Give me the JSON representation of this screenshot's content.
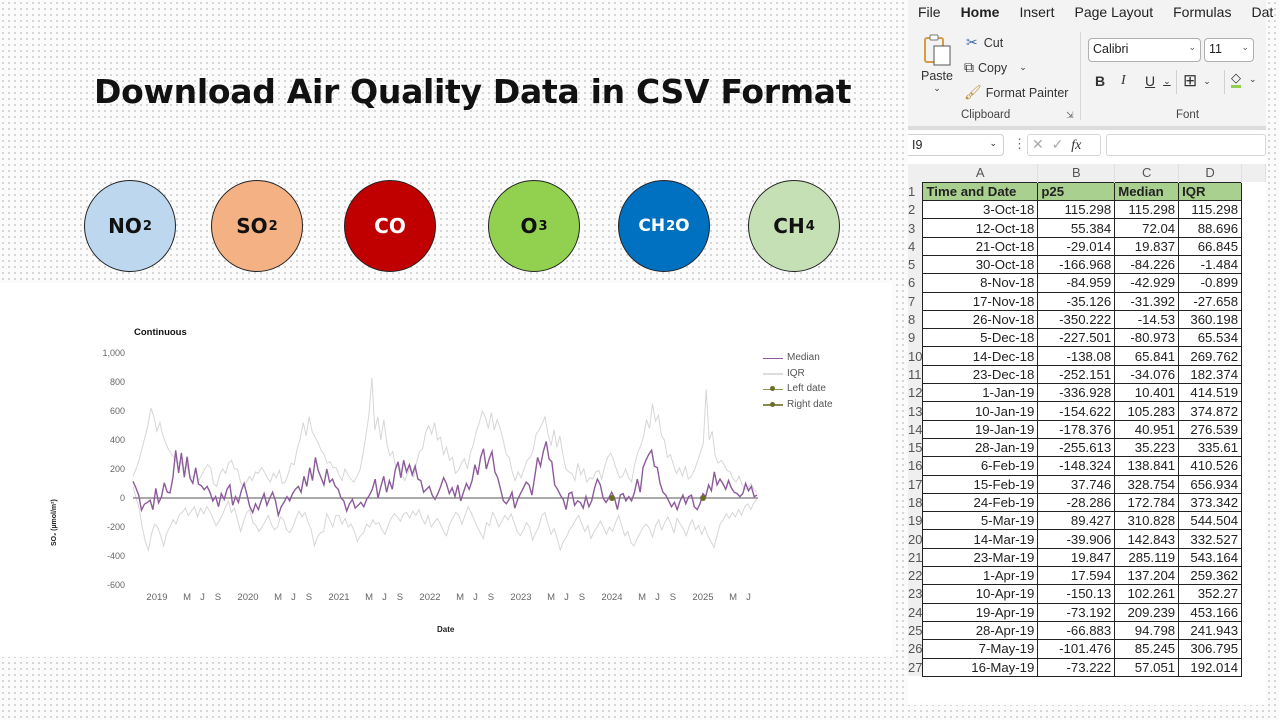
{
  "slide": {
    "title": "Download Air Quality Data in CSV Format",
    "pollutants": [
      {
        "main": "NO",
        "sub": "2",
        "fill": "#bdd7ee",
        "text": "#111111"
      },
      {
        "main": "SO",
        "sub": "2",
        "fill": "#f4b183",
        "text": "#111111"
      },
      {
        "main": "CO",
        "sub": "",
        "fill": "#c00000",
        "text": "#ffffff"
      },
      {
        "main": "O",
        "sub": "3",
        "fill": "#92d050",
        "text": "#111111"
      },
      {
        "main": "CH",
        "sub": "2",
        "tail": "O",
        "fill": "#0070c0",
        "text": "#ffffff"
      },
      {
        "main": "CH",
        "sub": "4",
        "tail": "",
        "fill": "#c5e0b4",
        "text": "#111111"
      }
    ]
  },
  "chart_data": {
    "type": "line",
    "title": "Continuous",
    "xlabel": "Date",
    "ylabel": "SO₂ (µmol/m²)",
    "ylim": [
      -600,
      1000
    ],
    "y_ticks": [
      "1,000",
      "800",
      "600",
      "400",
      "200",
      "0",
      "-200",
      "-400",
      "-600"
    ],
    "x_ticks": [
      "2019",
      "M",
      "J",
      "S",
      "2020",
      "M",
      "J",
      "S",
      "2021",
      "M",
      "J",
      "S",
      "2022",
      "M",
      "J",
      "S",
      "2023",
      "M",
      "J",
      "S",
      "2024",
      "M",
      "J",
      "S",
      "2025",
      "M",
      "J"
    ],
    "legend": [
      "Median",
      "IQR",
      "Left date",
      "Right date"
    ],
    "legend_position": "right",
    "grid": false,
    "colors": {
      "median": "#8c5a9a",
      "iqr": "#d4d4d4",
      "zero_line": "#555555",
      "markers": "#6b6b2a"
    },
    "x_start_year": 2018.78,
    "step_years": 0.0247,
    "series": [
      {
        "name": "Median",
        "values": [
          115,
          72,
          20,
          -84,
          -43,
          -31,
          -15,
          -81,
          66,
          -34,
          10,
          105,
          41,
          35,
          139,
          329,
          173,
          311,
          143,
          285,
          137,
          102,
          209,
          95,
          85,
          57,
          80,
          40,
          -20,
          10,
          -60,
          30,
          -10,
          60,
          90,
          -50,
          10,
          -30,
          50,
          100,
          20,
          -60,
          -100,
          -40,
          -80,
          -20,
          30,
          -50,
          0,
          40,
          -20,
          -120,
          -60,
          -30,
          10,
          -20,
          30,
          60,
          80,
          40,
          150,
          80,
          210,
          120,
          280,
          190,
          140,
          90,
          200,
          110,
          130,
          80,
          60,
          0,
          -20,
          -90,
          -40,
          -10,
          -70,
          -50,
          -30,
          -60,
          -10,
          20,
          60,
          130,
          0,
          80,
          150,
          40,
          120,
          60,
          190,
          250,
          140,
          260,
          180,
          230,
          160,
          220,
          130,
          120,
          40,
          60,
          80,
          20,
          -10,
          30,
          80,
          140,
          100,
          30,
          70,
          10,
          90,
          -20,
          40,
          100,
          60,
          120,
          230,
          160,
          280,
          340,
          200,
          270,
          320,
          180,
          140,
          60,
          -20,
          -40,
          -10,
          40,
          -70,
          -10,
          30,
          70,
          110,
          90,
          20,
          150,
          280,
          220,
          320,
          390,
          270,
          250,
          90,
          60,
          20,
          -10,
          -80,
          30,
          40,
          -50,
          -20,
          -30,
          -70,
          10,
          -60,
          -20,
          70,
          130,
          90,
          0,
          -30,
          0,
          40,
          0,
          -80,
          20,
          30,
          -20,
          10,
          -20,
          40,
          130,
          40,
          210,
          260,
          300,
          330,
          220,
          210,
          100,
          40,
          20,
          -20,
          -60,
          -30,
          -80,
          -20,
          20,
          -40,
          10,
          20,
          -60,
          -80,
          -40,
          30,
          10,
          90,
          50,
          180,
          90,
          130,
          100,
          60,
          120,
          70,
          40,
          30,
          10,
          30,
          100,
          50,
          80,
          10,
          20
        ]
      },
      {
        "name": "IQR upper",
        "values": [
          150,
          200,
          260,
          340,
          420,
          500,
          620,
          560,
          460,
          520,
          430,
          380,
          330,
          300,
          270,
          240,
          250,
          200,
          230,
          150,
          140,
          180,
          120,
          160,
          200,
          230,
          210,
          100,
          80,
          160,
          200,
          170,
          240,
          260,
          200,
          200,
          110,
          80,
          110,
          150,
          120,
          180,
          170,
          210,
          180,
          140,
          110,
          170,
          140,
          190,
          100,
          110,
          170,
          240,
          230,
          340,
          410,
          520,
          430,
          560,
          460,
          420,
          380,
          330,
          300,
          240,
          250,
          210,
          210,
          160,
          120,
          200,
          160,
          130,
          110,
          150,
          190,
          300,
          430,
          570,
          830,
          470,
          560,
          400,
          540,
          380,
          290,
          320,
          210,
          230,
          170,
          120,
          170,
          220,
          140,
          250,
          320,
          340,
          450,
          500,
          440,
          520,
          400,
          420,
          300,
          350,
          260,
          280,
          170,
          190,
          240,
          270,
          200,
          310,
          370,
          460,
          520,
          600,
          560,
          480,
          590,
          470,
          540,
          480,
          400,
          300,
          280,
          180,
          120,
          180,
          140,
          200,
          260,
          280,
          330,
          440,
          470,
          510,
          560,
          440,
          360,
          470,
          350,
          430,
          300,
          200,
          180,
          170,
          120,
          240,
          160,
          200,
          110,
          140,
          130,
          180,
          190,
          130,
          220,
          280,
          310,
          260,
          190,
          140,
          150,
          200,
          140,
          110,
          230,
          310,
          360,
          420,
          540,
          480,
          650,
          530,
          570,
          430,
          400,
          280,
          300,
          230,
          170,
          210,
          150,
          220,
          130,
          150,
          190,
          250,
          310,
          380,
          750,
          400,
          460,
          290,
          240,
          260,
          230,
          190,
          180,
          130,
          110,
          150,
          90,
          60,
          70,
          100,
          60,
          40
        ]
      },
      {
        "name": "IQR lower",
        "values": [
          80,
          0,
          -70,
          -200,
          -300,
          -360,
          -250,
          -180,
          -200,
          -260,
          -330,
          -240,
          -200,
          -150,
          -180,
          -120,
          -100,
          -70,
          -120,
          -90,
          -60,
          -130,
          -70,
          -110,
          -60,
          -90,
          -140,
          -190,
          -160,
          -120,
          -70,
          -20,
          -100,
          -70,
          -150,
          -230,
          -160,
          -100,
          -80,
          -170,
          -190,
          -230,
          -200,
          -160,
          -120,
          -180,
          -220,
          -200,
          -130,
          -150,
          -220,
          -240,
          -200,
          -140,
          -90,
          -130,
          -100,
          -170,
          -220,
          -330,
          -270,
          -240,
          -230,
          -110,
          -150,
          -200,
          -120,
          -120,
          -180,
          -140,
          -200,
          -180,
          -230,
          -300,
          -260,
          -240,
          -180,
          -200,
          -150,
          -180,
          -170,
          -220,
          -250,
          -190,
          -140,
          -110,
          -130,
          -160,
          -110,
          -100,
          -140,
          -90,
          -120,
          -80,
          -140,
          -180,
          -120,
          -200,
          -170,
          -140,
          -180,
          -230,
          -260,
          -180,
          -140,
          -100,
          -120,
          -180,
          -120,
          -60,
          -100,
          -150,
          -200,
          -240,
          -280,
          -170,
          -190,
          -100,
          -140,
          -200,
          -160,
          -120,
          -150,
          -110,
          -170,
          -230,
          -260,
          -220,
          -170,
          -200,
          -290,
          -240,
          -200,
          -120,
          -100,
          -180,
          -250,
          -210,
          -280,
          -360,
          -300,
          -270,
          -220,
          -190,
          -150,
          -120,
          -180,
          -230,
          -190,
          -280,
          -230,
          -200,
          -160,
          -200,
          -250,
          -200,
          -230,
          -170,
          -120,
          -190,
          -260,
          -230,
          -310,
          -330,
          -280,
          -240,
          -200,
          -180,
          -210,
          -270,
          -190,
          -150,
          -220,
          -170,
          -130,
          -180,
          -240,
          -140,
          -180,
          -210,
          -260,
          -190,
          -150,
          -220,
          -190,
          -250,
          -200,
          -260,
          -300,
          -340,
          -260,
          -180,
          -150,
          -110,
          -140,
          -100,
          -130,
          -80,
          -120,
          -60,
          -40,
          -80,
          -30,
          -10
        ]
      }
    ],
    "markers": [
      {
        "label": "Left date",
        "x_year": 2024.0,
        "y": 0
      },
      {
        "label": "Right date",
        "x_year": 2025.0,
        "y": 0
      }
    ]
  },
  "excel": {
    "menu_tabs": [
      "File",
      "Home",
      "Insert",
      "Page Layout",
      "Formulas",
      "Dat"
    ],
    "active_tab": "Home",
    "clipboard": {
      "paste": "Paste",
      "cut": "Cut",
      "copy": "Copy",
      "format_painter": "Format Painter",
      "group_label": "Clipboard"
    },
    "font": {
      "family": "Calibri",
      "size": "11",
      "group_label": "Font",
      "bold": "B",
      "italic": "I",
      "underline": "U"
    },
    "name_box": "I9",
    "formula_value": "",
    "columns": [
      "A",
      "B",
      "C",
      "D"
    ],
    "headers": [
      "Time and Date",
      "p25",
      "Median",
      "IQR"
    ],
    "rows": [
      [
        "3-Oct-18",
        "115.298",
        "115.298",
        "115.298"
      ],
      [
        "12-Oct-18",
        "55.384",
        "72.04",
        "88.696"
      ],
      [
        "21-Oct-18",
        "-29.014",
        "19.837",
        "66.845"
      ],
      [
        "30-Oct-18",
        "-166.968",
        "-84.226",
        "-1.484"
      ],
      [
        "8-Nov-18",
        "-84.959",
        "-42.929",
        "-0.899"
      ],
      [
        "17-Nov-18",
        "-35.126",
        "-31.392",
        "-27.658"
      ],
      [
        "26-Nov-18",
        "-350.222",
        "-14.53",
        "360.198"
      ],
      [
        "5-Dec-18",
        "-227.501",
        "-80.973",
        "65.534"
      ],
      [
        "14-Dec-18",
        "-138.08",
        "65.841",
        "269.762"
      ],
      [
        "23-Dec-18",
        "-252.151",
        "-34.076",
        "182.374"
      ],
      [
        "1-Jan-19",
        "-336.928",
        "10.401",
        "414.519"
      ],
      [
        "10-Jan-19",
        "-154.622",
        "105.283",
        "374.872"
      ],
      [
        "19-Jan-19",
        "-178.376",
        "40.951",
        "276.539"
      ],
      [
        "28-Jan-19",
        "-255.613",
        "35.223",
        "335.61"
      ],
      [
        "6-Feb-19",
        "-148.324",
        "138.841",
        "410.526"
      ],
      [
        "15-Feb-19",
        "37.746",
        "328.754",
        "656.934"
      ],
      [
        "24-Feb-19",
        "-28.286",
        "172.784",
        "373.342"
      ],
      [
        "5-Mar-19",
        "89.427",
        "310.828",
        "544.504"
      ],
      [
        "14-Mar-19",
        "-39.906",
        "142.843",
        "332.527"
      ],
      [
        "23-Mar-19",
        "19.847",
        "285.119",
        "543.164"
      ],
      [
        "1-Apr-19",
        "17.594",
        "137.204",
        "259.362"
      ],
      [
        "10-Apr-19",
        "-150.13",
        "102.261",
        "352.27"
      ],
      [
        "19-Apr-19",
        "-73.192",
        "209.239",
        "453.166"
      ],
      [
        "28-Apr-19",
        "-66.883",
        "94.798",
        "241.943"
      ],
      [
        "7-May-19",
        "-101.476",
        "85.245",
        "306.795"
      ],
      [
        "16-May-19",
        "-73.222",
        "57.051",
        "192.014"
      ]
    ]
  }
}
